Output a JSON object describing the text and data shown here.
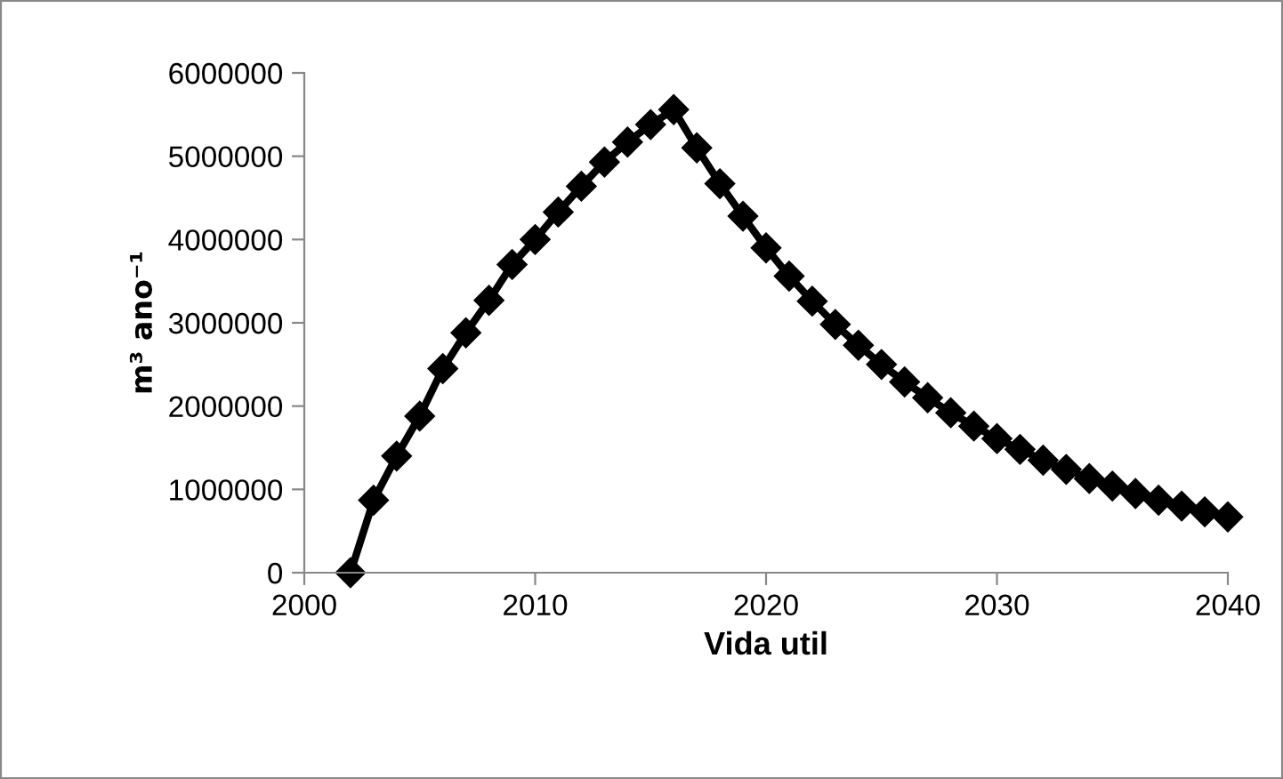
{
  "chart_data": {
    "type": "line",
    "xlabel": "Vida util",
    "ylabel": "m³ ano⁻¹",
    "x": [
      2002,
      2003,
      2004,
      2005,
      2006,
      2007,
      2008,
      2009,
      2010,
      2011,
      2012,
      2013,
      2014,
      2015,
      2016,
      2017,
      2018,
      2019,
      2020,
      2021,
      2022,
      2023,
      2024,
      2025,
      2026,
      2027,
      2028,
      2029,
      2030,
      2031,
      2032,
      2033,
      2034,
      2035,
      2036,
      2037,
      2038,
      2039,
      2040
    ],
    "series": [
      {
        "color": "#000000",
        "values": [
          0,
          870000,
          1400000,
          1880000,
          2450000,
          2880000,
          3270000,
          3700000,
          4000000,
          4330000,
          4640000,
          4930000,
          5170000,
          5380000,
          5560000,
          5100000,
          4670000,
          4280000,
          3900000,
          3560000,
          3260000,
          2980000,
          2730000,
          2500000,
          2290000,
          2100000,
          1920000,
          1760000,
          1610000,
          1480000,
          1350000,
          1240000,
          1130000,
          1040000,
          950000,
          870000,
          800000,
          730000,
          670000
        ]
      }
    ],
    "xlim": [
      2000,
      2040
    ],
    "xticks": [
      2000,
      2010,
      2020,
      2030,
      2040
    ],
    "ylim": [
      0,
      6000000
    ],
    "yticks": [
      0,
      1000000,
      2000000,
      3000000,
      4000000,
      5000000,
      6000000
    ],
    "grid": false,
    "legend": false,
    "marker": "diamond",
    "line_style": "solid"
  }
}
